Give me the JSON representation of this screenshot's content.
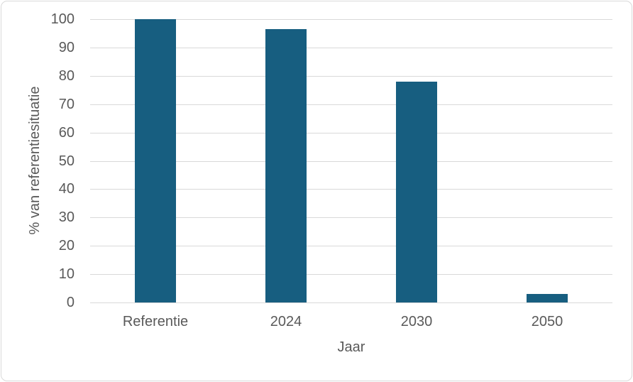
{
  "chart_data": {
    "type": "bar",
    "title": "",
    "categories": [
      "Referentie",
      "2024",
      "2030",
      "2050"
    ],
    "values": [
      100,
      96.5,
      78,
      3
    ],
    "xlabel": "Jaar",
    "ylabel": "% van referentiesituatie",
    "ylim": [
      0,
      100
    ],
    "yticks": [
      0,
      10,
      20,
      30,
      40,
      50,
      60,
      70,
      80,
      90,
      100
    ],
    "grid": true,
    "legend": "none",
    "bar_color": "#175E80",
    "gridline_color": "#D9D9D9",
    "axis_line_color": "#D9D9D9",
    "axis_text_color": "#595959",
    "frame_border_color": "#D9D9D9",
    "background_color": "#FFFFFF"
  }
}
